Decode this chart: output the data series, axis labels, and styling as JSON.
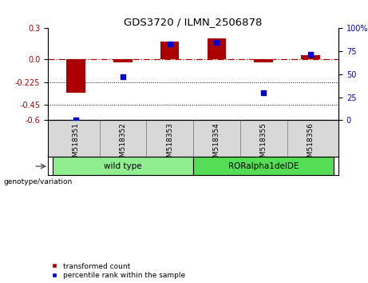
{
  "title": "GDS3720 / ILMN_2506878",
  "samples": [
    "GSM518351",
    "GSM518352",
    "GSM518353",
    "GSM518354",
    "GSM518355",
    "GSM518356"
  ],
  "red_values": [
    -0.33,
    -0.03,
    0.17,
    0.2,
    -0.03,
    0.04
  ],
  "blue_percentiles": [
    0,
    47,
    83,
    85,
    30,
    72
  ],
  "ylim_left": [
    -0.6,
    0.3
  ],
  "ylim_right": [
    0,
    100
  ],
  "yticks_left": [
    0.3,
    0.0,
    -0.225,
    -0.45,
    -0.6
  ],
  "yticks_right": [
    100,
    75,
    50,
    25,
    0
  ],
  "dotted_lines": [
    -0.225,
    -0.45
  ],
  "red_color": "#AA0000",
  "blue_color": "#0000CC",
  "bar_width": 0.4,
  "groups": [
    {
      "label": "wild type",
      "indices": [
        0,
        1,
        2
      ],
      "color": "#90EE90"
    },
    {
      "label": "RORalpha1delDE",
      "indices": [
        3,
        4,
        5
      ],
      "color": "#55DD55"
    }
  ],
  "legend_red": "transformed count",
  "legend_blue": "percentile rank within the sample",
  "genotype_label": "genotype/variation",
  "xlabels_bg": "#D8D8D8",
  "geno_bg": "white"
}
